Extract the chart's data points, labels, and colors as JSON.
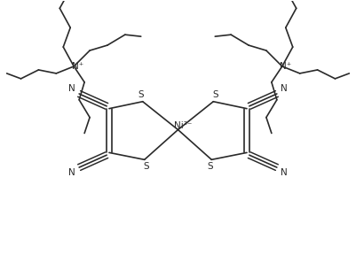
{
  "background": "#ffffff",
  "line_color": "#2a2a2a",
  "line_width": 1.2,
  "fig_width": 4.01,
  "fig_height": 3.05,
  "dpi": 100,
  "xlim": [
    0,
    10
  ],
  "ylim": [
    0,
    7.6
  ]
}
